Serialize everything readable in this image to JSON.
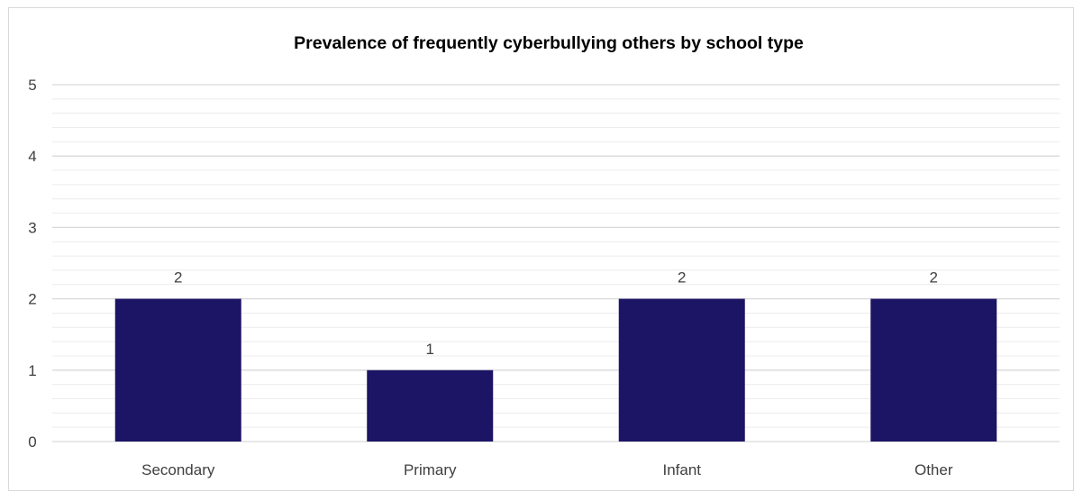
{
  "chart_data": {
    "type": "bar",
    "title": "Prevalence of frequently cyberbullying others by school type",
    "xlabel": "",
    "ylabel": "",
    "categories": [
      "Secondary",
      "Primary",
      "Infant",
      "Other"
    ],
    "values": [
      2,
      1,
      2,
      2
    ],
    "data_labels": [
      "2",
      "1",
      "2",
      "2"
    ],
    "ylim": [
      0,
      5
    ],
    "y_ticks": [
      0,
      1,
      2,
      3,
      4,
      5
    ],
    "y_tick_labels": [
      "0",
      "1",
      "2",
      "3",
      "4",
      "5"
    ],
    "grid": true,
    "minor_grid": true,
    "legend": "none",
    "bar_color": "#1c1464",
    "gridline_color": "#d9d9d9"
  }
}
